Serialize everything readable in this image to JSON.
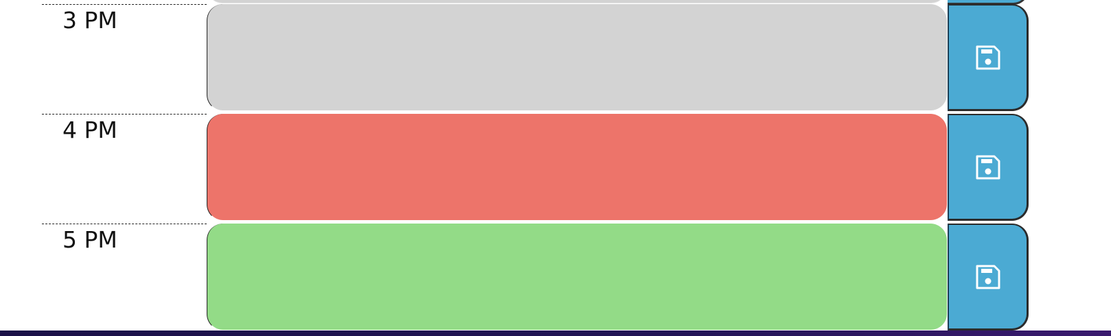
{
  "colors": {
    "past": "#d3d3d3",
    "present": "#ed746a",
    "future": "#93db87",
    "save_button": "#4baad3",
    "footer": "#1b1148"
  },
  "time_blocks": [
    {
      "hour_label": "3 PM",
      "state": "past",
      "text": "",
      "save_icon": "floppy-disk-icon"
    },
    {
      "hour_label": "4 PM",
      "state": "present",
      "text": "",
      "save_icon": "floppy-disk-icon"
    },
    {
      "hour_label": "5 PM",
      "state": "future",
      "text": "",
      "save_icon": "floppy-disk-icon"
    }
  ]
}
